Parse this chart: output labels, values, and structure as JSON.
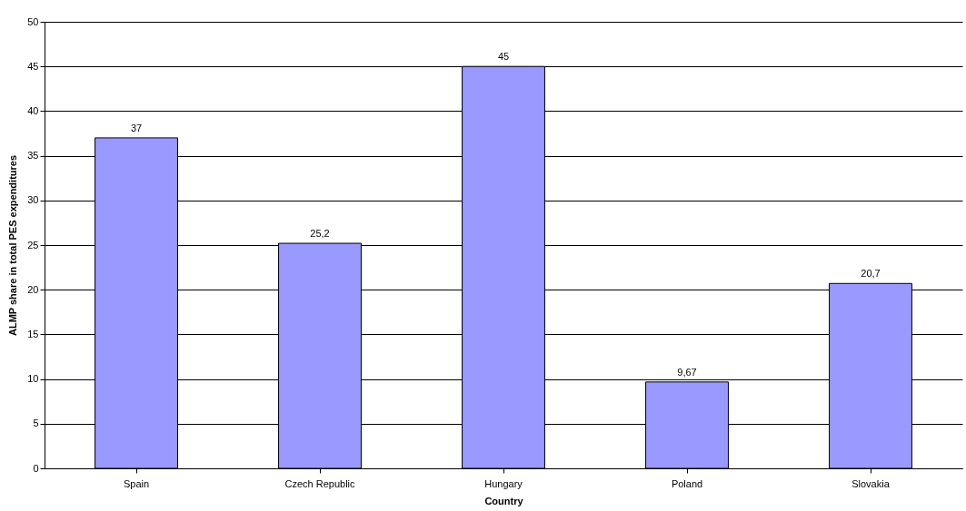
{
  "chart_data": {
    "type": "bar",
    "xlabel": "Country",
    "ylabel": "ALMP share in total PES expenditures",
    "categories": [
      "Spain",
      "Czech Republic",
      "Hungary",
      "Poland",
      "Slovakia"
    ],
    "values": [
      37,
      25.2,
      45,
      9.67,
      20.7
    ],
    "value_labels": [
      "37",
      "25,2",
      "45",
      "9,67",
      "20,7"
    ],
    "color": "#9999ff",
    "ylim": [
      0,
      50
    ],
    "yticks": [
      0,
      5,
      10,
      15,
      20,
      25,
      30,
      35,
      40,
      45,
      50
    ],
    "grid": "y"
  }
}
